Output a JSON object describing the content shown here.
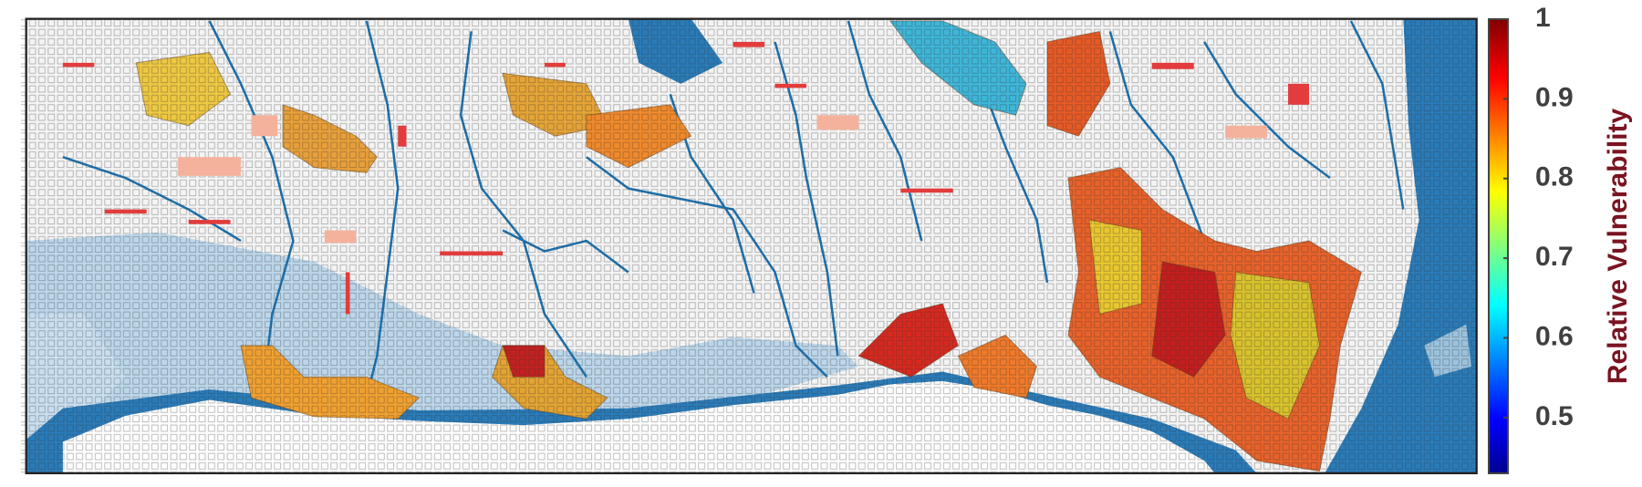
{
  "map": {
    "colorbar": {
      "label": "Relative Vulnerability",
      "clim": [
        0.43,
        1
      ],
      "ticks": [
        0.5,
        0.6,
        0.7,
        0.8,
        0.9,
        1
      ]
    }
  }
}
